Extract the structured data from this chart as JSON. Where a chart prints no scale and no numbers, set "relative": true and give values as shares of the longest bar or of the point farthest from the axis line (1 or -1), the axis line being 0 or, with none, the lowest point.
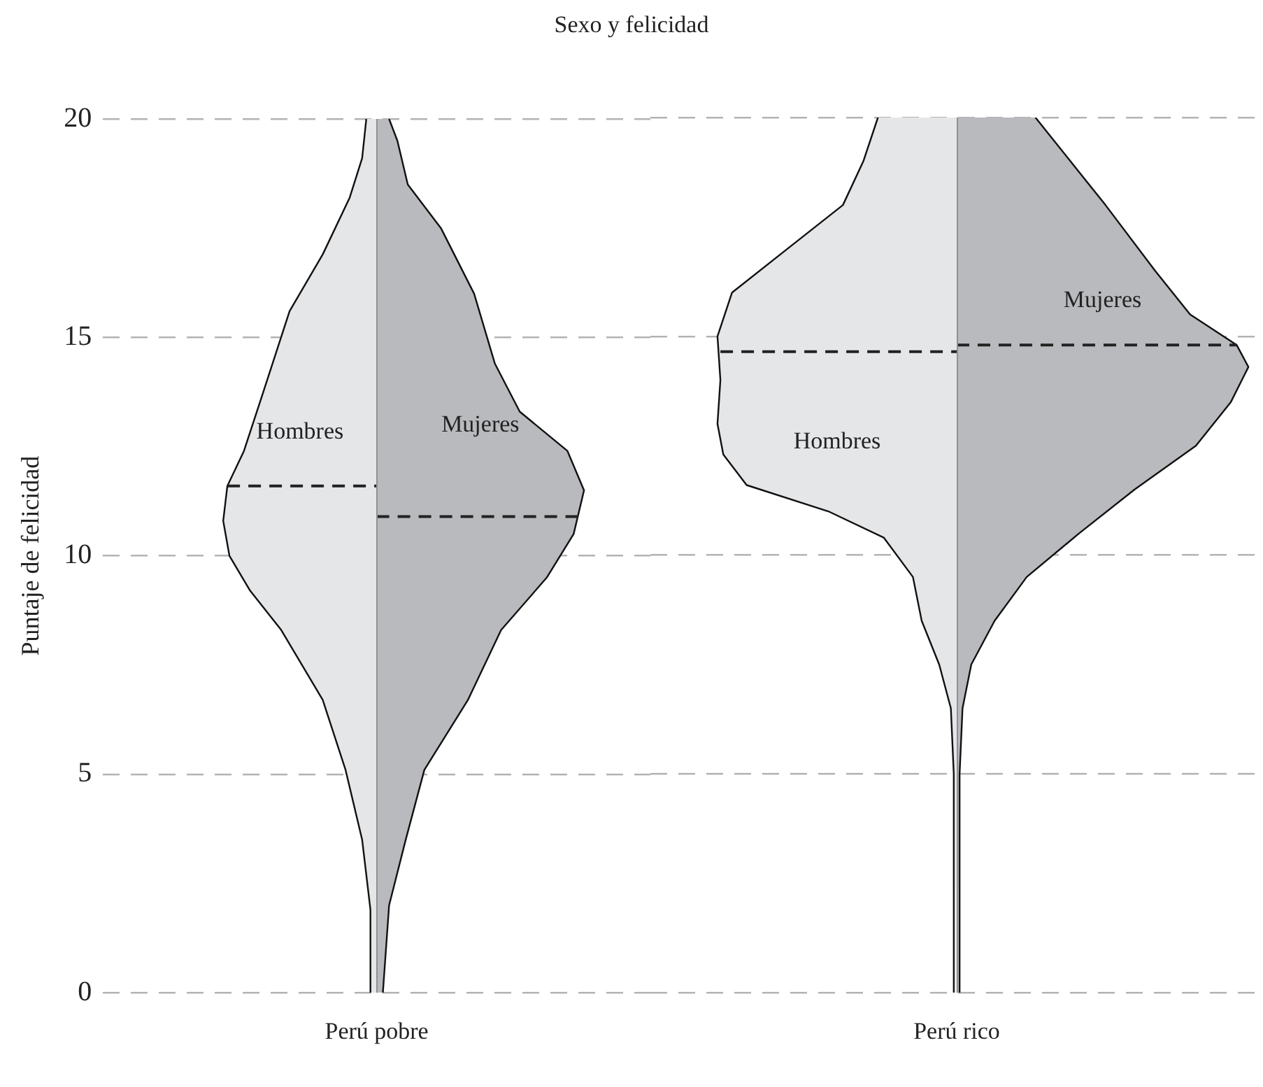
{
  "chart_data": [
    {
      "type": "area",
      "orientation": "horizontal",
      "relative": true,
      "title": "Sexo y felicidad",
      "xlabel": "Perú pobre",
      "ylabel": "Puntaje de felicidad",
      "ylim": [
        0,
        20
      ],
      "yticks": [
        0,
        5,
        10,
        15,
        20
      ],
      "grid": "y",
      "legend": false,
      "series": [
        {
          "name": "Hombres",
          "color": "#e5e6e8",
          "x": [
            0,
            1.9,
            3.5,
            5.1,
            6.7,
            8.3,
            9.2,
            10,
            10.8,
            11.6,
            12.4,
            13.7,
            15.6,
            16.9,
            18.2,
            19.1,
            20
          ],
          "values": [
            -0.03,
            -0.03,
            -0.07,
            -0.15,
            -0.26,
            -0.46,
            -0.61,
            -0.71,
            -0.74,
            -0.72,
            -0.64,
            -0.55,
            -0.42,
            -0.26,
            -0.13,
            -0.07,
            -0.05
          ]
        },
        {
          "name": "Mujeres",
          "color": "#b9babd",
          "x": [
            0,
            2,
            3.5,
            5.1,
            6.7,
            8.3,
            9.5,
            10.5,
            11.5,
            12.4,
            13.3,
            14.4,
            16,
            17.5,
            18.5,
            19.5,
            20
          ],
          "values": [
            0.03,
            0.06,
            0.14,
            0.23,
            0.44,
            0.6,
            0.82,
            0.95,
            1,
            0.92,
            0.69,
            0.57,
            0.47,
            0.31,
            0.15,
            0.1,
            0.06
          ]
        },
        {
          "type": "line",
          "color": "#222222",
          "line_style": "dashed",
          "x": [
            11.6,
            11.6
          ],
          "values": [
            -0.72,
            0
          ]
        },
        {
          "type": "line",
          "color": "#222222",
          "line_style": "dashed",
          "x": [
            10.9,
            10.9
          ],
          "values": [
            0,
            0.99
          ]
        }
      ]
    },
    {
      "type": "area",
      "orientation": "horizontal",
      "relative": true,
      "xlabel": "Perú rico",
      "ylim": [
        0,
        20
      ],
      "yticks": [
        0,
        5,
        10,
        15,
        20
      ],
      "tick_labels": false,
      "grid": "y",
      "legend": false,
      "series": [
        {
          "name": "Hombres",
          "color": "#e5e6e8",
          "x": [
            0,
            5,
            6.5,
            7.5,
            8.5,
            9.5,
            10.4,
            11,
            11.6,
            12.3,
            13,
            14,
            15,
            16,
            17,
            18,
            19,
            20
          ],
          "values": [
            -0.01,
            -0.01,
            -0.02,
            -0.06,
            -0.12,
            -0.15,
            -0.25,
            -0.44,
            -0.72,
            -0.8,
            -0.82,
            -0.81,
            -0.82,
            -0.77,
            -0.58,
            -0.39,
            -0.32,
            -0.27
          ]
        },
        {
          "name": "Mujeres",
          "color": "#b9babd",
          "x": [
            0,
            5,
            6.5,
            7.5,
            8.5,
            9.5,
            10.5,
            11.5,
            12.5,
            13.5,
            14.3,
            14.8,
            15.5,
            16.5,
            18,
            19,
            20
          ],
          "values": [
            0.01,
            0.01,
            0.02,
            0.05,
            0.13,
            0.24,
            0.42,
            0.61,
            0.82,
            0.94,
            1,
            0.96,
            0.8,
            0.68,
            0.51,
            0.39,
            0.27
          ]
        },
        {
          "type": "line",
          "color": "#222222",
          "line_style": "dashed",
          "x": [
            14.65,
            14.65
          ],
          "values": [
            -0.81,
            0
          ]
        },
        {
          "type": "line",
          "color": "#222222",
          "line_style": "dashed",
          "x": [
            14.8,
            14.8
          ],
          "values": [
            0,
            0.96
          ]
        }
      ]
    }
  ]
}
